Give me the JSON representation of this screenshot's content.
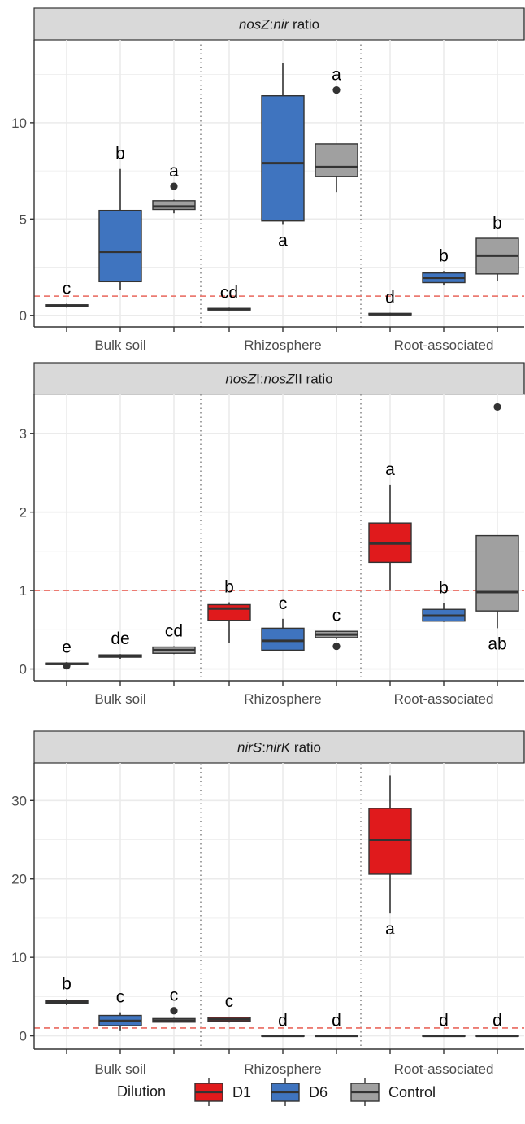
{
  "chart_data": [
    {
      "type": "box",
      "title_parts": [
        {
          "text": "nosZ",
          "italic": true
        },
        {
          "text": ":",
          "italic": false
        },
        {
          "text": "nir",
          "italic": true
        },
        {
          "text": " ratio",
          "italic": false
        }
      ],
      "groups": [
        "Bulk soil",
        "Rhizosphere",
        "Root-associated"
      ],
      "ylim": [
        -0.6,
        14.3
      ],
      "yticks": [
        0,
        5,
        10
      ],
      "reference_line": 1,
      "boxes": [
        {
          "group": "Bulk soil",
          "dilution": "D1",
          "min": 0.4,
          "q1": 0.45,
          "median": 0.5,
          "q3": 0.55,
          "max": 0.6,
          "outliers": [],
          "letter": "c"
        },
        {
          "group": "Bulk soil",
          "dilution": "D6",
          "min": 1.3,
          "q1": 1.75,
          "median": 3.3,
          "q3": 5.45,
          "max": 7.6,
          "outliers": [],
          "letter": "b"
        },
        {
          "group": "Bulk soil",
          "dilution": "Control",
          "min": 5.3,
          "q1": 5.5,
          "median": 5.65,
          "q3": 5.95,
          "max": 6.0,
          "outliers": [
            6.7
          ],
          "letter": "a"
        },
        {
          "group": "Rhizosphere",
          "dilution": "D1",
          "min": 0.25,
          "q1": 0.28,
          "median": 0.32,
          "q3": 0.36,
          "max": 0.4,
          "outliers": [],
          "letter": "cd"
        },
        {
          "group": "Rhizosphere",
          "dilution": "D6",
          "min": 4.7,
          "q1": 4.9,
          "median": 7.9,
          "q3": 11.4,
          "max": 13.1,
          "outliers": [],
          "letter": "a",
          "letter_below": true
        },
        {
          "group": "Rhizosphere",
          "dilution": "Control",
          "min": 6.4,
          "q1": 7.2,
          "median": 7.7,
          "q3": 8.9,
          "max": 8.9,
          "outliers": [
            11.7
          ],
          "letter": "a"
        },
        {
          "group": "Root-associated",
          "dilution": "D1",
          "min": 0.0,
          "q1": 0.03,
          "median": 0.06,
          "q3": 0.1,
          "max": 0.13,
          "outliers": [],
          "letter": "d"
        },
        {
          "group": "Root-associated",
          "dilution": "D6",
          "min": 1.55,
          "q1": 1.7,
          "median": 1.95,
          "q3": 2.2,
          "max": 2.3,
          "outliers": [],
          "letter": "b"
        },
        {
          "group": "Root-associated",
          "dilution": "Control",
          "min": 1.8,
          "q1": 2.15,
          "median": 3.1,
          "q3": 4.0,
          "max": 4.0,
          "outliers": [],
          "letter": "b"
        }
      ]
    },
    {
      "type": "box",
      "title_parts": [
        {
          "text": "nosZ",
          "italic": true
        },
        {
          "text": "I:",
          "italic": false
        },
        {
          "text": "nosZ",
          "italic": true
        },
        {
          "text": "II ratio",
          "italic": false
        }
      ],
      "groups": [
        "Bulk soil",
        "Rhizosphere",
        "Root-associated"
      ],
      "ylim": [
        -0.15,
        3.5
      ],
      "yticks": [
        0,
        1,
        2,
        3
      ],
      "reference_line": 1,
      "boxes": [
        {
          "group": "Bulk soil",
          "dilution": "D1",
          "min": 0.04,
          "q1": 0.055,
          "median": 0.065,
          "q3": 0.075,
          "max": 0.085,
          "outliers": [
            0.04
          ],
          "letter": "e"
        },
        {
          "group": "Bulk soil",
          "dilution": "D6",
          "min": 0.13,
          "q1": 0.15,
          "median": 0.165,
          "q3": 0.18,
          "max": 0.19,
          "outliers": [],
          "letter": "de"
        },
        {
          "group": "Bulk soil",
          "dilution": "Control",
          "min": 0.19,
          "q1": 0.2,
          "median": 0.24,
          "q3": 0.28,
          "max": 0.29,
          "outliers": [],
          "letter": "cd"
        },
        {
          "group": "Rhizosphere",
          "dilution": "D1",
          "min": 0.33,
          "q1": 0.62,
          "median": 0.77,
          "q3": 0.82,
          "max": 0.85,
          "outliers": [],
          "letter": "b"
        },
        {
          "group": "Rhizosphere",
          "dilution": "D6",
          "min": 0.23,
          "q1": 0.24,
          "median": 0.36,
          "q3": 0.52,
          "max": 0.64,
          "outliers": [],
          "letter": "c"
        },
        {
          "group": "Rhizosphere",
          "dilution": "Control",
          "min": 0.38,
          "q1": 0.4,
          "median": 0.44,
          "q3": 0.48,
          "max": 0.49,
          "outliers": [
            0.29
          ],
          "letter": "c"
        },
        {
          "group": "Root-associated",
          "dilution": "D1",
          "min": 1.0,
          "q1": 1.36,
          "median": 1.6,
          "q3": 1.86,
          "max": 2.35,
          "outliers": [],
          "letter": "a"
        },
        {
          "group": "Root-associated",
          "dilution": "D6",
          "min": 0.6,
          "q1": 0.61,
          "median": 0.68,
          "q3": 0.76,
          "max": 0.84,
          "outliers": [],
          "letter": "b"
        },
        {
          "group": "Root-associated",
          "dilution": "Control",
          "min": 0.52,
          "q1": 0.74,
          "median": 0.98,
          "q3": 1.7,
          "max": 1.7,
          "outliers": [
            3.34
          ],
          "letter": "ab",
          "letter_below": true
        }
      ]
    },
    {
      "type": "box",
      "title_parts": [
        {
          "text": "nirS",
          "italic": true
        },
        {
          "text": ":",
          "italic": false
        },
        {
          "text": "nirK",
          "italic": true
        },
        {
          "text": " ratio",
          "italic": false
        }
      ],
      "groups": [
        "Bulk soil",
        "Rhizosphere",
        "Root-associated"
      ],
      "ylim": [
        -1.7,
        34.8
      ],
      "yticks": [
        0,
        10,
        20,
        30
      ],
      "reference_line": 1,
      "boxes": [
        {
          "group": "Bulk soil",
          "dilution": "D1",
          "min": 3.9,
          "q1": 4.1,
          "median": 4.3,
          "q3": 4.5,
          "max": 4.7,
          "outliers": [],
          "letter": "b"
        },
        {
          "group": "Bulk soil",
          "dilution": "D6",
          "min": 0.6,
          "q1": 1.3,
          "median": 1.9,
          "q3": 2.6,
          "max": 3.0,
          "outliers": [],
          "letter": "c"
        },
        {
          "group": "Bulk soil",
          "dilution": "Control",
          "min": 1.7,
          "q1": 1.75,
          "median": 1.95,
          "q3": 2.2,
          "max": 2.3,
          "outliers": [
            3.2
          ],
          "letter": "c"
        },
        {
          "group": "Rhizosphere",
          "dilution": "D1",
          "min": 1.7,
          "q1": 1.85,
          "median": 2.1,
          "q3": 2.35,
          "max": 2.45,
          "outliers": [],
          "letter": "c"
        },
        {
          "group": "Rhizosphere",
          "dilution": "D6",
          "min": 0.0,
          "q1": 0.0,
          "median": 0.0,
          "q3": 0.0,
          "max": 0.0,
          "outliers": [],
          "letter": "d"
        },
        {
          "group": "Rhizosphere",
          "dilution": "Control",
          "min": 0.0,
          "q1": 0.0,
          "median": 0.0,
          "q3": 0.0,
          "max": 0.0,
          "outliers": [],
          "letter": "d"
        },
        {
          "group": "Root-associated",
          "dilution": "D1",
          "min": 15.6,
          "q1": 20.6,
          "median": 25.0,
          "q3": 29.0,
          "max": 33.2,
          "outliers": [],
          "letter": "a",
          "letter_below": true
        },
        {
          "group": "Root-associated",
          "dilution": "D6",
          "min": 0.0,
          "q1": 0.0,
          "median": 0.0,
          "q3": 0.0,
          "max": 0.0,
          "outliers": [],
          "letter": "d"
        },
        {
          "group": "Root-associated",
          "dilution": "Control",
          "min": 0.0,
          "q1": 0.0,
          "median": 0.0,
          "q3": 0.0,
          "max": 0.0,
          "outliers": [],
          "letter": "d"
        }
      ]
    }
  ],
  "legend": {
    "title": "Dilution",
    "position": "bottom",
    "items": [
      {
        "label": "D1",
        "color": "#e01a1c"
      },
      {
        "label": "D6",
        "color": "#3f74bf"
      },
      {
        "label": "Control",
        "color": "#a0a0a0"
      }
    ]
  },
  "style": {
    "reference_line_color": "#ec7b72",
    "strip_fill": "#d9d9d9",
    "grid_color": "#ebebeb",
    "separator_color": "#8c8c8c"
  }
}
